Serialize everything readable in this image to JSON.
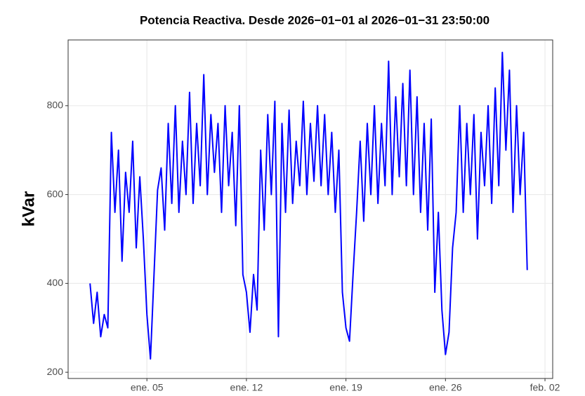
{
  "chart_data": {
    "type": "line",
    "title": "Potencia Reactiva. Desde  2026−01−01  al  2026−01−31 23:50:00",
    "y_label": "kVar",
    "color": "#0000ff",
    "grid": true,
    "x": [
      "2026-01-01 00:00",
      "2026-01-01 06:00",
      "2026-01-01 12:00",
      "2026-01-01 18:00",
      "2026-01-02 00:00",
      "2026-01-02 06:00",
      "2026-01-02 12:00",
      "2026-01-02 18:00",
      "2026-01-03 00:00",
      "2026-01-03 06:00",
      "2026-01-03 12:00",
      "2026-01-03 18:00",
      "2026-01-04 00:00",
      "2026-01-04 06:00",
      "2026-01-04 12:00",
      "2026-01-04 18:00",
      "2026-01-05 00:00",
      "2026-01-05 06:00",
      "2026-01-05 12:00",
      "2026-01-05 18:00",
      "2026-01-06 00:00",
      "2026-01-06 06:00",
      "2026-01-06 12:00",
      "2026-01-06 18:00",
      "2026-01-07 00:00",
      "2026-01-07 06:00",
      "2026-01-07 12:00",
      "2026-01-07 18:00",
      "2026-01-08 00:00",
      "2026-01-08 06:00",
      "2026-01-08 12:00",
      "2026-01-08 18:00",
      "2026-01-09 00:00",
      "2026-01-09 06:00",
      "2026-01-09 12:00",
      "2026-01-09 18:00",
      "2026-01-10 00:00",
      "2026-01-10 06:00",
      "2026-01-10 12:00",
      "2026-01-10 18:00",
      "2026-01-11 00:00",
      "2026-01-11 06:00",
      "2026-01-11 12:00",
      "2026-01-11 18:00",
      "2026-01-12 00:00",
      "2026-01-12 06:00",
      "2026-01-12 12:00",
      "2026-01-12 18:00",
      "2026-01-13 00:00",
      "2026-01-13 06:00",
      "2026-01-13 12:00",
      "2026-01-13 18:00",
      "2026-01-14 00:00",
      "2026-01-14 06:00",
      "2026-01-14 12:00",
      "2026-01-14 18:00",
      "2026-01-15 00:00",
      "2026-01-15 06:00",
      "2026-01-15 12:00",
      "2026-01-15 18:00",
      "2026-01-16 00:00",
      "2026-01-16 06:00",
      "2026-01-16 12:00",
      "2026-01-16 18:00",
      "2026-01-17 00:00",
      "2026-01-17 06:00",
      "2026-01-17 12:00",
      "2026-01-17 18:00",
      "2026-01-18 00:00",
      "2026-01-18 06:00",
      "2026-01-18 12:00",
      "2026-01-18 18:00",
      "2026-01-19 00:00",
      "2026-01-19 06:00",
      "2026-01-19 12:00",
      "2026-01-19 18:00",
      "2026-01-20 00:00",
      "2026-01-20 06:00",
      "2026-01-20 12:00",
      "2026-01-20 18:00",
      "2026-01-21 00:00",
      "2026-01-21 06:00",
      "2026-01-21 12:00",
      "2026-01-21 18:00",
      "2026-01-22 00:00",
      "2026-01-22 06:00",
      "2026-01-22 12:00",
      "2026-01-22 18:00",
      "2026-01-23 00:00",
      "2026-01-23 06:00",
      "2026-01-23 12:00",
      "2026-01-23 18:00",
      "2026-01-24 00:00",
      "2026-01-24 06:00",
      "2026-01-24 12:00",
      "2026-01-24 18:00",
      "2026-01-25 00:00",
      "2026-01-25 06:00",
      "2026-01-25 12:00",
      "2026-01-25 18:00",
      "2026-01-26 00:00",
      "2026-01-26 06:00",
      "2026-01-26 12:00",
      "2026-01-26 18:00",
      "2026-01-27 00:00",
      "2026-01-27 06:00",
      "2026-01-27 12:00",
      "2026-01-27 18:00",
      "2026-01-28 00:00",
      "2026-01-28 06:00",
      "2026-01-28 12:00",
      "2026-01-28 18:00",
      "2026-01-29 00:00",
      "2026-01-29 06:00",
      "2026-01-29 12:00",
      "2026-01-29 18:00",
      "2026-01-30 00:00",
      "2026-01-30 06:00",
      "2026-01-30 12:00",
      "2026-01-30 18:00",
      "2026-01-31 00:00",
      "2026-01-31 06:00",
      "2026-01-31 12:00",
      "2026-01-31 18:00"
    ],
    "values": [
      400,
      310,
      380,
      280,
      330,
      300,
      740,
      560,
      700,
      450,
      650,
      560,
      720,
      480,
      640,
      500,
      330,
      230,
      420,
      610,
      660,
      520,
      760,
      580,
      800,
      560,
      720,
      600,
      830,
      580,
      760,
      620,
      870,
      600,
      780,
      650,
      760,
      560,
      800,
      620,
      740,
      530,
      800,
      420,
      380,
      290,
      420,
      340,
      700,
      520,
      780,
      600,
      810,
      280,
      760,
      560,
      790,
      580,
      720,
      620,
      810,
      600,
      760,
      630,
      800,
      620,
      780,
      600,
      740,
      560,
      700,
      380,
      300,
      270,
      420,
      560,
      720,
      540,
      760,
      600,
      800,
      580,
      760,
      620,
      900,
      600,
      820,
      640,
      850,
      620,
      880,
      600,
      820,
      560,
      760,
      520,
      770,
      380,
      560,
      340,
      240,
      290,
      480,
      560,
      800,
      560,
      760,
      600,
      780,
      500,
      740,
      620,
      800,
      580,
      840,
      620,
      920,
      700,
      880,
      560,
      800,
      600,
      740,
      430
    ],
    "xlim": [
      "2025-12-30 11:00",
      "2026-02-02 13:00"
    ],
    "xticks": [
      {
        "value": "2026-01-05 00:00",
        "label": "ene. 05"
      },
      {
        "value": "2026-01-12 00:00",
        "label": "ene. 12"
      },
      {
        "value": "2026-01-19 00:00",
        "label": "ene. 19"
      },
      {
        "value": "2026-01-26 00:00",
        "label": "ene. 26"
      },
      {
        "value": "2026-02-02 00:00",
        "label": "feb. 02"
      }
    ],
    "ylim": [
      186,
      948
    ],
    "yticks": [
      200,
      400,
      600,
      800
    ]
  }
}
